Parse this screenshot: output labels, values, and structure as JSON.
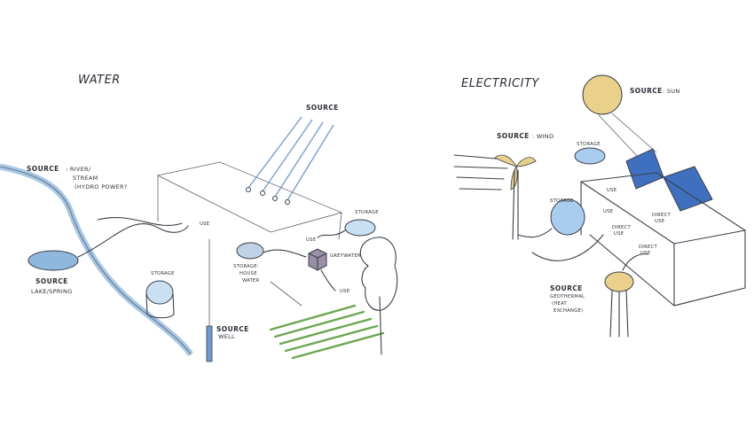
{
  "water": {
    "title": "WATER",
    "source_label": "SOURCE",
    "river_note_1": ": RIVER/",
    "river_note_2": "STREAM",
    "river_note_3": "(HYDRO POWER?",
    "lake_note": "LAKE/SPRING",
    "well_note": "WELL",
    "storage_left": "STORAGE",
    "storage_right": "STORAGE",
    "storage_house_1": "STORAGE:",
    "storage_house_2": "HOUSE",
    "storage_house_3": "WATER",
    "use_1": "USE",
    "use_2": "USE",
    "greywater": "GREYWATER",
    "use_3": "USE"
  },
  "electricity": {
    "title": "ELECTRICITY",
    "source_label": "SOURCE",
    "sun_note": ": SUN",
    "wind_note": ": WIND",
    "geo_note_1": "GEOTHERMAL",
    "geo_note_2": "(HEAT",
    "geo_note_3": "EXCHANGE)",
    "storage_top": "STORAGE",
    "storage_mid": "STORAGE",
    "use_top": "USE",
    "use_mid": "USE",
    "direct_1": "DIRECT",
    "direct_1b": "USE",
    "direct_2": "DIRECT",
    "direct_2b": "USE",
    "direct_3": "DIRECT",
    "direct_3b": "USE"
  },
  "colors": {
    "water_blue": "#8fb8de",
    "solar_yellow": "#ead18a",
    "grass_green": "#6aa84f",
    "ink": "#3b3f4a"
  }
}
